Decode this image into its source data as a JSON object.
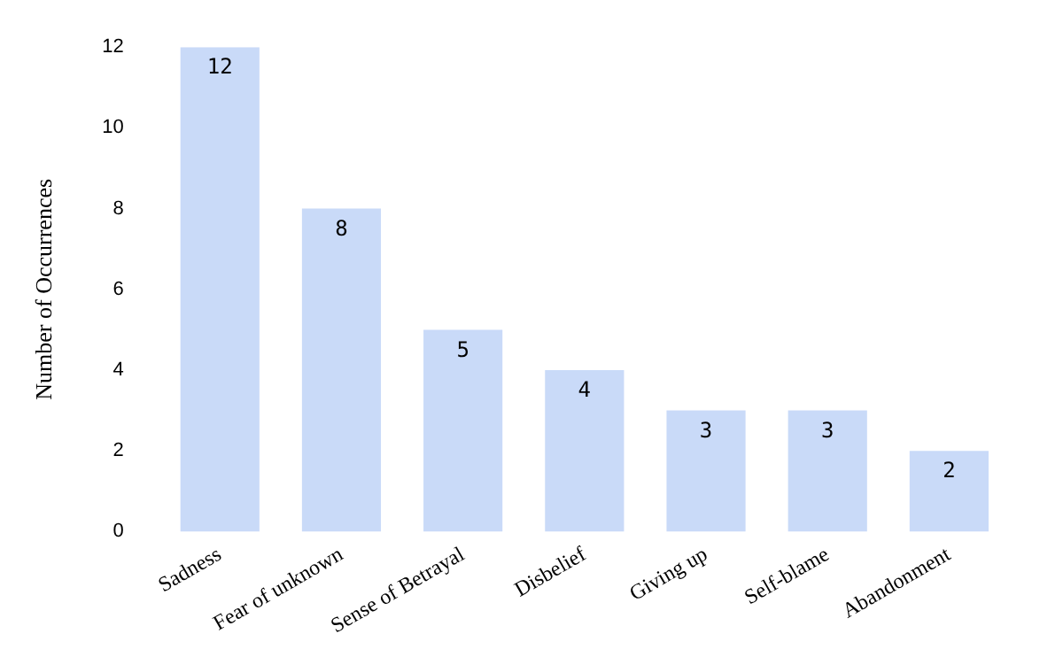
{
  "chart_data": {
    "type": "bar",
    "ylabel": "Number of Occurrences",
    "categories": [
      "Sadness",
      "Fear of unknown",
      "Sense of Betrayal",
      "Disbelief",
      "Giving up",
      "Self-blame",
      "Abandonment"
    ],
    "values": [
      12,
      8,
      5,
      4,
      3,
      3,
      2
    ],
    "color": "#c9daf8",
    "ylim": [
      0,
      12
    ],
    "yticks": [
      0,
      2,
      4,
      6,
      8,
      10,
      12
    ],
    "grid": false,
    "legend": false,
    "data_labels": true
  }
}
